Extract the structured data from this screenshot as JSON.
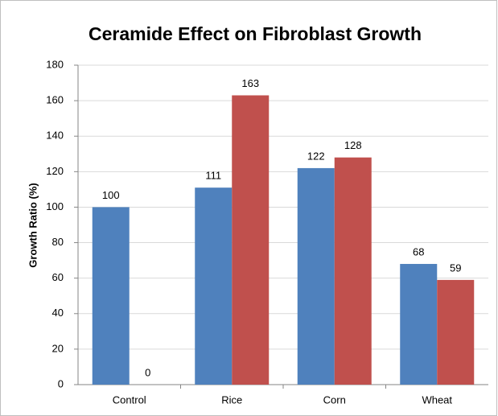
{
  "chart_data": {
    "type": "bar",
    "title": "Ceramide Effect on Fibroblast Growth",
    "y_label": "Growth Ratio (%)",
    "categories": [
      "Control",
      "Rice",
      "Corn",
      "Wheat"
    ],
    "series": [
      {
        "color": "#4f81bd",
        "values": [
          100,
          111,
          122,
          68
        ]
      },
      {
        "color": "#c0504d",
        "values": [
          0,
          163,
          128,
          59
        ]
      }
    ],
    "ylim": [
      0,
      180
    ],
    "yticks": [
      0,
      20,
      40,
      60,
      80,
      100,
      120,
      140,
      160,
      180
    ],
    "grid": true
  }
}
